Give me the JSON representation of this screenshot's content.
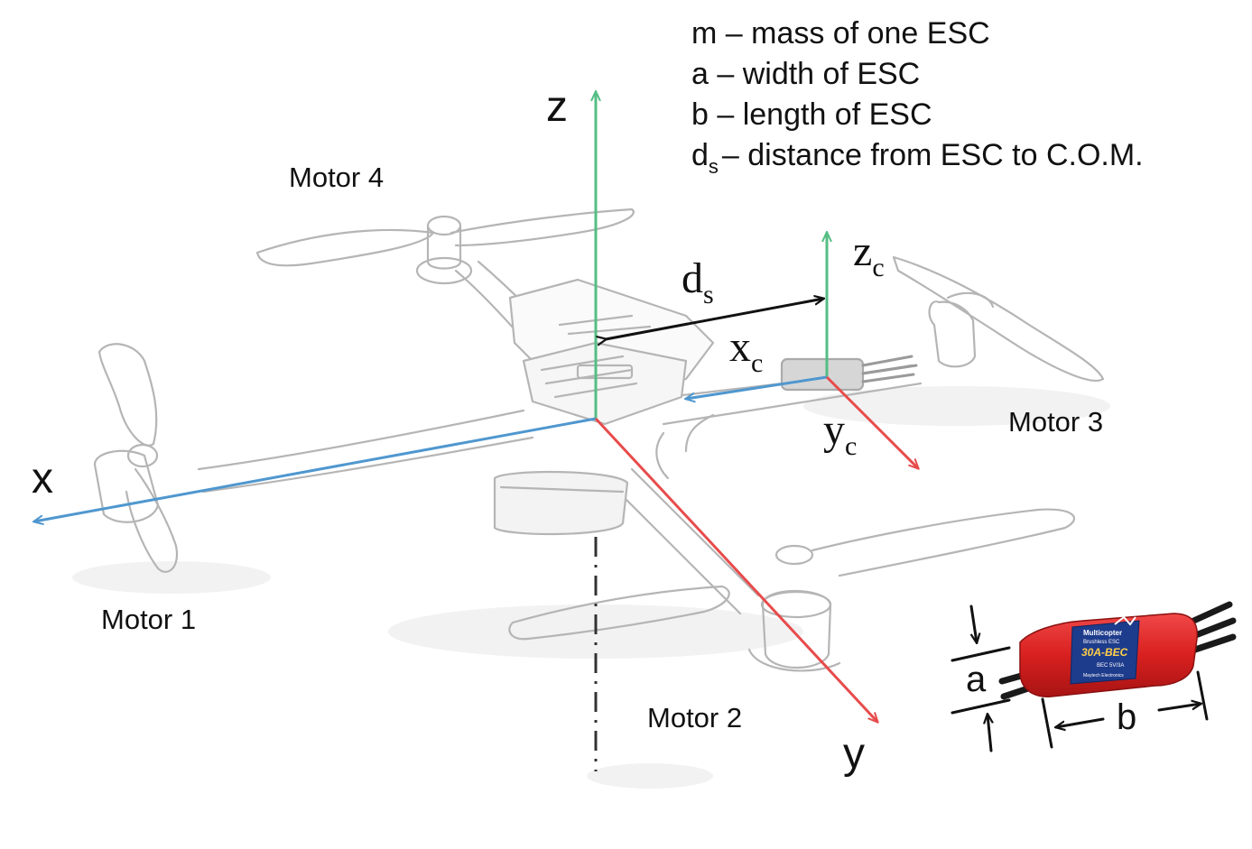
{
  "legend": {
    "line1": "m – mass of one ESC",
    "line2": "a – width of ESC",
    "line3": "b – length of ESC",
    "line4_symbol": "d",
    "line4_subscript": "s",
    "line4_text": "– distance from ESC to C.O.M."
  },
  "motors": {
    "motor1": "Motor 1",
    "motor2": "Motor 2",
    "motor3": "Motor 3",
    "motor4": "Motor 4"
  },
  "axes": {
    "x": "x",
    "y": "y",
    "z": "z",
    "xc": "x",
    "yc": "y",
    "zc": "z",
    "subscript_c": "c",
    "ds": "d",
    "ds_sub": "s"
  },
  "esc": {
    "a_label": "a",
    "b_label": "b",
    "line1": "Multicopter",
    "line2": "Brushless ESC",
    "model": "30A-BEC",
    "spec": "BEC 5V/3A",
    "maker": "Maytech Electronics"
  },
  "colors": {
    "x_axis": "#4f97cf",
    "y_axis": "#e84b4b",
    "z_axis": "#54be84",
    "sketch": "#b5b5b5",
    "esc_body": "#e02727",
    "esc_label": "#1e3c8c"
  },
  "icons": [
    "drone-sketch",
    "esc-photo"
  ]
}
